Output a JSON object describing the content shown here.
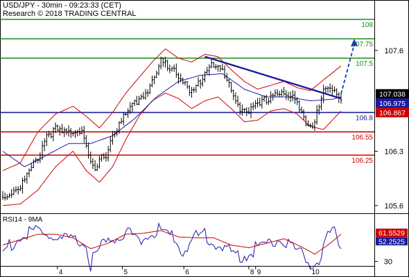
{
  "header": {
    "title": "USD/JPY - 30min - 09:23:33 (CET)",
    "subtitle": "Research © 2018 TRADING CENTRAL"
  },
  "rsi_title": "RSI14 - 9MA",
  "colors": {
    "background": "#ffffff",
    "candle": "#000000",
    "bollinger": "#cc0000",
    "moving_average": "#1a1aa8",
    "trendline": "#1a1a9c",
    "target_arrow": "#1a3bb3",
    "resistance": "#1a8a1a",
    "pivot": "#1a1a9c",
    "support": "#cc0000",
    "price_badge": "#000000",
    "rsi_line": "#1a1aa8",
    "rsi_ma": "#cc0000"
  },
  "chart_data": [
    {
      "type": "candlestick",
      "title": "USD/JPY - 30min - 09:23:33 (CET)",
      "ylim": [
        105.5,
        108.25
      ],
      "y_ticks": [
        105.6,
        106.3,
        107.6
      ],
      "x_ticks": [
        "4",
        "5",
        "6",
        "8",
        "9",
        "10"
      ],
      "bars": 155,
      "close_path": [
        [
          0,
          105.72
        ],
        [
          4,
          105.82
        ],
        [
          8,
          105.88
        ],
        [
          12,
          106.05
        ],
        [
          16,
          106.25
        ],
        [
          20,
          106.55
        ],
        [
          24,
          106.6
        ],
        [
          28,
          106.55
        ],
        [
          32,
          106.6
        ],
        [
          36,
          106.62
        ],
        [
          40,
          106.15
        ],
        [
          42,
          106.05
        ],
        [
          44,
          106.2
        ],
        [
          47,
          106.3
        ],
        [
          50,
          106.55
        ],
        [
          55,
          106.75
        ],
        [
          60,
          106.95
        ],
        [
          65,
          107.1
        ],
        [
          70,
          107.3
        ],
        [
          72,
          107.5
        ],
        [
          74,
          107.45
        ],
        [
          78,
          107.4
        ],
        [
          82,
          107.25
        ],
        [
          85,
          107.05
        ],
        [
          88,
          107.15
        ],
        [
          92,
          107.35
        ],
        [
          95,
          107.48
        ],
        [
          100,
          107.35
        ],
        [
          104,
          107.1
        ],
        [
          108,
          106.9
        ],
        [
          112,
          106.85
        ],
        [
          116,
          106.9
        ],
        [
          120,
          107
        ],
        [
          124,
          107.1
        ],
        [
          128,
          107.05
        ],
        [
          132,
          107
        ],
        [
          136,
          106.9
        ],
        [
          138,
          106.7
        ],
        [
          142,
          106.7
        ],
        [
          146,
          107.1
        ],
        [
          150,
          107.15
        ],
        [
          154,
          107.04
        ]
      ],
      "bollinger": {
        "upper": [
          [
            0,
            106.05
          ],
          [
            8,
            106.15
          ],
          [
            16,
            106.55
          ],
          [
            24,
            106.78
          ],
          [
            32,
            106.88
          ],
          [
            38,
            106.75
          ],
          [
            44,
            106.6
          ],
          [
            50,
            106.8
          ],
          [
            56,
            107.05
          ],
          [
            62,
            107.25
          ],
          [
            68,
            107.45
          ],
          [
            74,
            107.62
          ],
          [
            80,
            107.5
          ],
          [
            86,
            107.45
          ],
          [
            92,
            107.55
          ],
          [
            98,
            107.52
          ],
          [
            104,
            107.35
          ],
          [
            110,
            107.2
          ],
          [
            116,
            107.1
          ],
          [
            122,
            107.15
          ],
          [
            128,
            107.2
          ],
          [
            134,
            107.12
          ],
          [
            140,
            107.08
          ],
          [
            146,
            107.22
          ],
          [
            154,
            107.4
          ]
        ],
        "lower": [
          [
            0,
            105.6
          ],
          [
            8,
            105.62
          ],
          [
            16,
            105.8
          ],
          [
            24,
            106.1
          ],
          [
            32,
            106.3
          ],
          [
            38,
            106.05
          ],
          [
            44,
            105.9
          ],
          [
            50,
            106.1
          ],
          [
            56,
            106.45
          ],
          [
            62,
            106.75
          ],
          [
            68,
            106.95
          ],
          [
            74,
            107.05
          ],
          [
            80,
            106.98
          ],
          [
            86,
            106.85
          ],
          [
            92,
            106.95
          ],
          [
            98,
            107.0
          ],
          [
            104,
            106.85
          ],
          [
            110,
            106.68
          ],
          [
            116,
            106.7
          ],
          [
            122,
            106.82
          ],
          [
            128,
            106.85
          ],
          [
            134,
            106.78
          ],
          [
            140,
            106.62
          ],
          [
            146,
            106.58
          ],
          [
            154,
            106.82
          ]
        ]
      },
      "moving_average": [
        [
          0,
          106.3
        ],
        [
          10,
          106.1
        ],
        [
          20,
          106.25
        ],
        [
          30,
          106.4
        ],
        [
          40,
          106.4
        ],
        [
          50,
          106.5
        ],
        [
          60,
          106.72
        ],
        [
          70,
          107.0
        ],
        [
          80,
          107.2
        ],
        [
          90,
          107.28
        ],
        [
          100,
          107.3
        ],
        [
          110,
          107.1
        ],
        [
          120,
          107.0
        ],
        [
          130,
          107.0
        ],
        [
          140,
          106.95
        ],
        [
          150,
          106.97
        ],
        [
          154,
          107.0
        ]
      ],
      "trendline": [
        [
          92,
          107.52
        ],
        [
          154,
          106.98
        ]
      ],
      "target_arrow": [
        [
          154,
          107.04
        ],
        [
          160,
          107.75
        ]
      ],
      "levels": [
        {
          "value": 108,
          "label": "108",
          "kind": "resistance"
        },
        {
          "value": 107.75,
          "label": "107.75",
          "kind": "resistance"
        },
        {
          "value": 107.5,
          "label": "107.5",
          "kind": "resistance"
        },
        {
          "value": 106.8,
          "label": "106.8",
          "kind": "pivot"
        },
        {
          "value": 106.55,
          "label": "106.55",
          "kind": "support"
        },
        {
          "value": 106.25,
          "label": "106.25",
          "kind": "support"
        }
      ],
      "badges": [
        {
          "label": "107.038",
          "value": 107.038,
          "color": "#000000"
        },
        {
          "label": "106.975",
          "value": 106.92,
          "color": "#1a1a9c"
        },
        {
          "label": "106.867",
          "value": 106.8,
          "color": "#cc0000"
        }
      ]
    },
    {
      "type": "line",
      "title": "RSI14 - 9MA",
      "ylim": [
        25,
        80
      ],
      "y_ticks": [
        30
      ],
      "series": [
        {
          "kind": "rsi",
          "points": [
            [
              0,
              45
            ],
            [
              5,
              56
            ],
            [
              10,
              62
            ],
            [
              15,
              68
            ],
            [
              20,
              64
            ],
            [
              25,
              60
            ],
            [
              30,
              55
            ],
            [
              35,
              58
            ],
            [
              38,
              50
            ],
            [
              40,
              32
            ],
            [
              43,
              45
            ],
            [
              47,
              55
            ],
            [
              52,
              62
            ],
            [
              57,
              66
            ],
            [
              62,
              60
            ],
            [
              67,
              62
            ],
            [
              72,
              70
            ],
            [
              77,
              60
            ],
            [
              82,
              47
            ],
            [
              87,
              60
            ],
            [
              92,
              64
            ],
            [
              97,
              55
            ],
            [
              102,
              46
            ],
            [
              107,
              40
            ],
            [
              112,
              44
            ],
            [
              117,
              52
            ],
            [
              122,
              55
            ],
            [
              127,
              60
            ],
            [
              132,
              50
            ],
            [
              137,
              40
            ],
            [
              140,
              33
            ],
            [
              145,
              38
            ],
            [
              148,
              60
            ],
            [
              151,
              64
            ],
            [
              154,
              52
            ]
          ]
        },
        {
          "kind": "rsi_ma",
          "points": [
            [
              0,
              48
            ],
            [
              8,
              54
            ],
            [
              16,
              60
            ],
            [
              24,
              60
            ],
            [
              32,
              56
            ],
            [
              40,
              44
            ],
            [
              48,
              50
            ],
            [
              56,
              60
            ],
            [
              64,
              61
            ],
            [
              72,
              64
            ],
            [
              80,
              57
            ],
            [
              88,
              56
            ],
            [
              96,
              56
            ],
            [
              104,
              48
            ],
            [
              112,
              45
            ],
            [
              120,
              50
            ],
            [
              128,
              55
            ],
            [
              136,
              46
            ],
            [
              142,
              38
            ],
            [
              148,
              48
            ],
            [
              154,
              60
            ]
          ]
        }
      ],
      "badges": [
        {
          "label": "61.5529",
          "value": 61.55,
          "color": "#cc0000"
        },
        {
          "label": "52.2525",
          "value": 52.25,
          "color": "#1a1a9c"
        }
      ]
    }
  ]
}
